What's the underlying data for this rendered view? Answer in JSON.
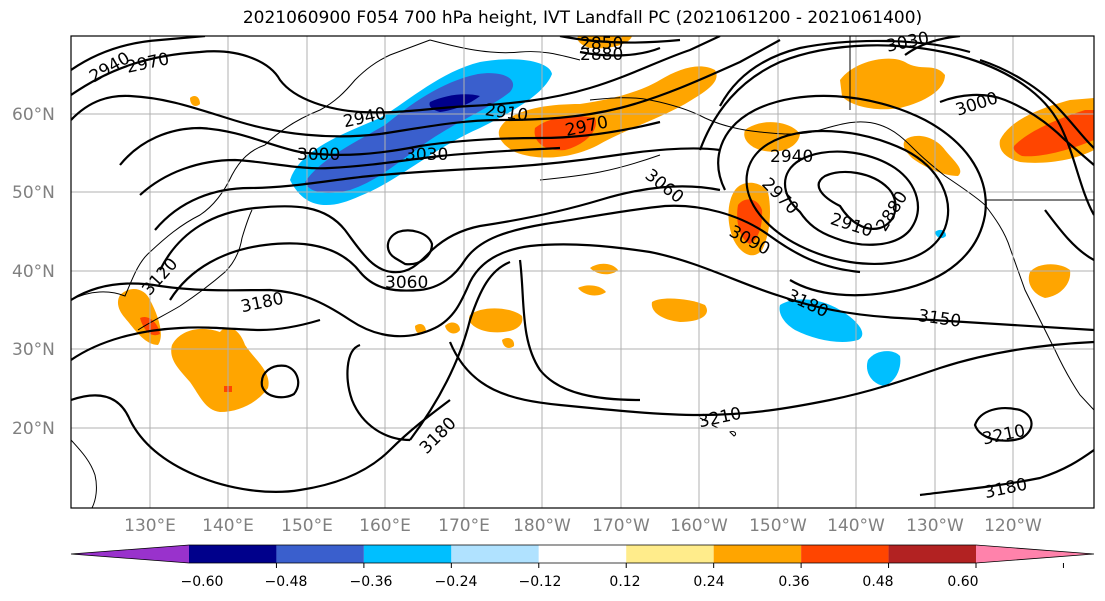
{
  "title": "2021060900 F054 700 hPa height, IVT Landfall PC (2021061200 - 2021061400)",
  "lat_labels": [
    "60°N",
    "50°N",
    "40°N",
    "30°N",
    "20°N"
  ],
  "lon_labels": [
    "130°E",
    "140°E",
    "150°E",
    "160°E",
    "170°E",
    "180°W",
    "170°W",
    "160°W",
    "150°W",
    "140°W",
    "130°W",
    "120°W"
  ],
  "contour_labels": [
    "2940",
    "2970",
    "2850",
    "2880",
    "2940",
    "2910",
    "2970",
    "3000",
    "3030",
    "3030",
    "3000",
    "2940",
    "3060",
    "2970",
    "2910",
    "2880",
    "3090",
    "3120",
    "3180",
    "3060",
    "3180",
    "3150",
    "3180",
    "3210",
    "3210",
    "3180"
  ],
  "colorbar": {
    "colors": [
      "#9932cc",
      "#00008b",
      "#3a5fcd",
      "#00bfff",
      "#b0e2ff",
      "#ffffff",
      "#ffec8b",
      "#ffa500",
      "#ff4500",
      "#b22222",
      "#ff82ab"
    ],
    "tick_labels": [
      "−0.60",
      "−0.48",
      "−0.36",
      "−0.24",
      "−0.12",
      "0.12",
      "0.24",
      "0.36",
      "0.48",
      "0.60"
    ]
  }
}
